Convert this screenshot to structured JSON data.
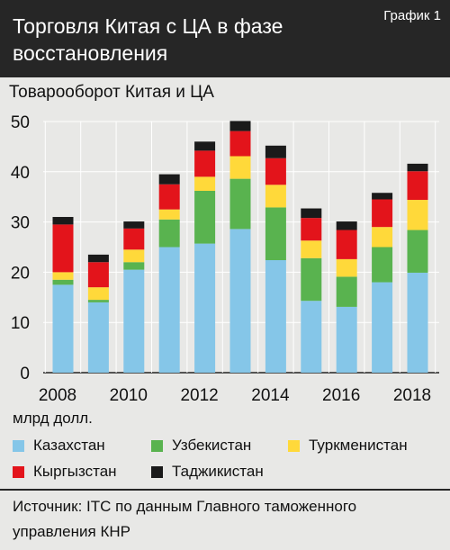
{
  "header": {
    "title": "Торговля Китая с ЦА в фазе восстановления",
    "chart_number": "График 1"
  },
  "footer": {
    "source": "Источник: ITC по данным Главного таможенного управления КНР"
  },
  "colors": {
    "kazakhstan": "#85c6e8",
    "uzbekistan": "#59b34f",
    "turkmenistan": "#ffd93a",
    "kyrgyzstan": "#e3141b",
    "tajikistan": "#1a1a1a",
    "header_bg": "#262626",
    "page_bg": "#e8e8e6"
  },
  "chart_data": {
    "type": "bar",
    "stacked": true,
    "title": "Товарооборот Китая и ЦА",
    "ylabel": "млрд долл.",
    "xlabel": "",
    "ylim": [
      0,
      50
    ],
    "yticks": [
      0,
      10,
      20,
      30,
      40,
      50
    ],
    "categories": [
      "2008",
      "2009",
      "2010",
      "2011",
      "2012",
      "2013",
      "2014",
      "2015",
      "2016",
      "2017",
      "2018"
    ],
    "xtick_labels": [
      "2008",
      "2010",
      "2012",
      "2014",
      "2016",
      "2018"
    ],
    "legend_position": "bottom",
    "series": [
      {
        "name": "Казахстан",
        "color": "#85c6e8",
        "values": [
          17.5,
          14.0,
          20.5,
          25.0,
          25.7,
          28.6,
          22.4,
          14.3,
          13.1,
          18.0,
          19.9
        ]
      },
      {
        "name": "Узбекистан",
        "color": "#59b34f",
        "values": [
          1.0,
          0.5,
          1.5,
          5.5,
          10.5,
          10.0,
          10.5,
          8.5,
          6.0,
          7.0,
          8.5
        ]
      },
      {
        "name": "Туркменистан",
        "color": "#ffd93a",
        "values": [
          1.5,
          2.5,
          2.5,
          2.0,
          2.8,
          4.5,
          4.5,
          3.5,
          3.5,
          4.0,
          6.0
        ]
      },
      {
        "name": "Кыргызстан",
        "color": "#e3141b",
        "values": [
          9.5,
          5.0,
          4.2,
          5.0,
          5.2,
          5.0,
          5.3,
          4.5,
          5.8,
          5.5,
          5.7
        ]
      },
      {
        "name": "Таджикистан",
        "color": "#1a1a1a",
        "values": [
          1.5,
          1.5,
          1.4,
          2.0,
          1.8,
          2.0,
          2.5,
          1.9,
          1.7,
          1.3,
          1.5
        ]
      }
    ]
  }
}
